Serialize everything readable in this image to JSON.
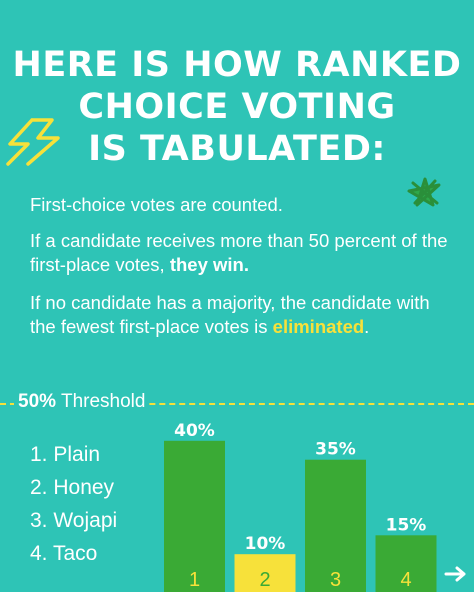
{
  "title": {
    "line1": "HERE IS HOW RANKED",
    "line2": "CHOICE VOTING",
    "line3": "IS TABULATED:"
  },
  "paragraphs": {
    "p1": "First-choice votes are counted.",
    "p2_lead": "If a candidate receives more than 50 percent of the first-place votes, ",
    "p2_bold": "they win.",
    "p3_lead": "If no candidate has a majority, the candidate with the fewest first-place votes is ",
    "p3_highlight": "eliminated",
    "p3_tail": "."
  },
  "threshold": {
    "value_label": "50%",
    "text": "Threshold"
  },
  "legend": [
    {
      "label": "1. Plain"
    },
    {
      "label": "2. Honey"
    },
    {
      "label": "3. Wojapi"
    },
    {
      "label": "4. Taco"
    }
  ],
  "colors": {
    "background": "#2ec4b6",
    "bar_green": "#3aaa35",
    "bar_yellow": "#f7e13a",
    "accent_yellow": "#f7e13a",
    "text": "#ffffff"
  },
  "icons": [
    "lightning-bolt-icon",
    "star-scribble-icon",
    "arrow-right-icon"
  ],
  "chart_data": {
    "type": "bar",
    "categories": [
      "1",
      "2",
      "3",
      "4"
    ],
    "values": [
      40,
      10,
      35,
      15
    ],
    "data_labels": [
      "40%",
      "10%",
      "35%",
      "15%"
    ],
    "bar_colors": [
      "#3aaa35",
      "#f7e13a",
      "#3aaa35",
      "#3aaa35"
    ],
    "category_label_colors": [
      "#f7e13a",
      "#3aaa35",
      "#f7e13a",
      "#f7e13a"
    ],
    "threshold": 50,
    "ylim": [
      0,
      50
    ],
    "title": "",
    "xlabel": "",
    "ylabel": "",
    "grid": false
  }
}
